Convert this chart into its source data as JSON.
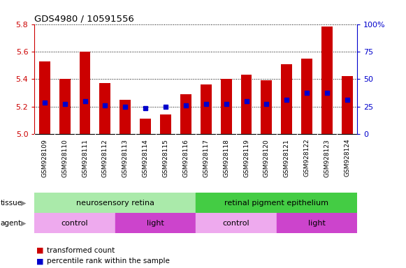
{
  "title": "GDS4980 / 10591556",
  "samples": [
    "GSM928109",
    "GSM928110",
    "GSM928111",
    "GSM928112",
    "GSM928113",
    "GSM928114",
    "GSM928115",
    "GSM928116",
    "GSM928117",
    "GSM928118",
    "GSM928119",
    "GSM928120",
    "GSM928121",
    "GSM928122",
    "GSM928123",
    "GSM928124"
  ],
  "bar_values": [
    5.53,
    5.4,
    5.6,
    5.37,
    5.25,
    5.11,
    5.14,
    5.29,
    5.36,
    5.4,
    5.43,
    5.39,
    5.51,
    5.55,
    5.78,
    5.42
  ],
  "percentile_values": [
    5.23,
    5.22,
    5.24,
    5.21,
    5.2,
    5.19,
    5.2,
    5.21,
    5.22,
    5.22,
    5.24,
    5.22,
    5.25,
    5.3,
    5.3,
    5.25
  ],
  "bar_color": "#cc0000",
  "percentile_color": "#0000cc",
  "ymin": 5.0,
  "ymax": 5.8,
  "yticks": [
    5.0,
    5.2,
    5.4,
    5.6,
    5.8
  ],
  "right_yticks": [
    0,
    25,
    50,
    75,
    100
  ],
  "right_yticklabels": [
    "0",
    "25",
    "50",
    "75",
    "100%"
  ],
  "tissue_groups": [
    {
      "label": "neurosensory retina",
      "start": 0,
      "end": 8,
      "color": "#aaeaaa"
    },
    {
      "label": "retinal pigment epithelium",
      "start": 8,
      "end": 16,
      "color": "#44cc44"
    }
  ],
  "agent_groups": [
    {
      "label": "control",
      "start": 0,
      "end": 4,
      "color": "#eeaaee"
    },
    {
      "label": "light",
      "start": 4,
      "end": 8,
      "color": "#cc44cc"
    },
    {
      "label": "control",
      "start": 8,
      "end": 12,
      "color": "#eeaaee"
    },
    {
      "label": "light",
      "start": 12,
      "end": 16,
      "color": "#cc44cc"
    }
  ],
  "bar_width": 0.55,
  "background_color": "#ffffff",
  "axis_color_left": "#cc0000",
  "axis_color_right": "#0000cc",
  "sample_label_bg": "#dddddd",
  "tissue_label_fontsize": 8,
  "agent_label_fontsize": 8
}
